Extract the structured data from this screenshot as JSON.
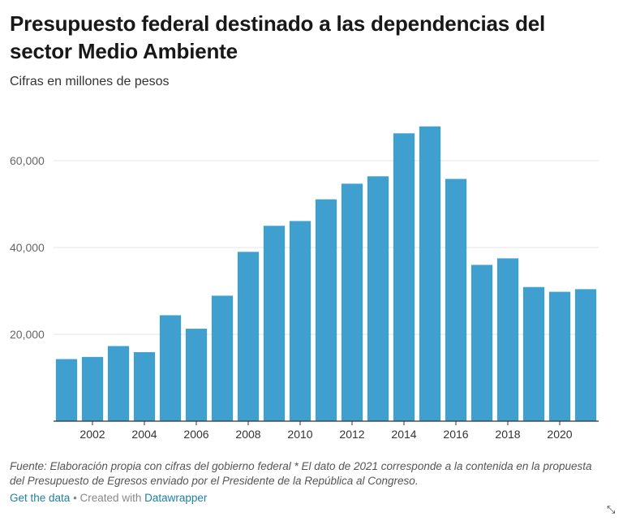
{
  "header": {
    "title": "Presupuesto federal destinado a las dependencias del sector Medio Ambiente",
    "subtitle": "Cifras en millones de pesos"
  },
  "footer": {
    "notes": "Fuente: Elaboración propia con cifras del gobierno federal * El dato de 2021 corresponde a la contenida en la propuesta del Presupuesto de Egresos enviado por el Presidente de la República al Congreso.",
    "get_data": "Get the data",
    "separator": " • Created with ",
    "datawrapper": "Datawrapper",
    "expand_icon": "expand-icon"
  },
  "colors": {
    "bar": "#3fa0cf",
    "grid": "#e6e6e6",
    "axis": "#333333"
  },
  "chart_data": {
    "type": "bar",
    "x": [
      2001,
      2002,
      2003,
      2004,
      2005,
      2006,
      2007,
      2008,
      2009,
      2010,
      2011,
      2012,
      2013,
      2014,
      2015,
      2016,
      2017,
      2018,
      2019,
      2020,
      2021
    ],
    "values": [
      14300,
      14800,
      17300,
      15900,
      24400,
      21300,
      28900,
      39000,
      45000,
      46100,
      51100,
      54700,
      56400,
      66300,
      67900,
      55800,
      36000,
      37500,
      30900,
      29800,
      30400
    ],
    "x_tick_labels": [
      "2002",
      "2004",
      "2006",
      "2008",
      "2010",
      "2012",
      "2014",
      "2016",
      "2018",
      "2020"
    ],
    "y_ticks": [
      20000,
      40000,
      60000
    ],
    "y_tick_labels": [
      "20,000",
      "40,000",
      "60,000"
    ],
    "ylim": [
      0,
      70000
    ],
    "grid": true,
    "legend": "none"
  }
}
